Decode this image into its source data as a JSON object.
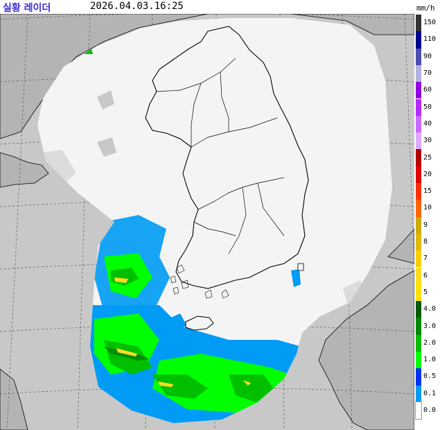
{
  "header": {
    "title": "실황 레이더",
    "timestamp": "2026.04.03.16:25",
    "unit": "mm/h"
  },
  "colors": {
    "land": "#b4b4b4",
    "sea": "#c8c8c8",
    "coverage": "#f4f4f4",
    "border": "#000000",
    "grid": "#5a5a5a"
  },
  "legend": {
    "items": [
      {
        "label": "150",
        "color": "#333333"
      },
      {
        "label": "110",
        "color": "#000390"
      },
      {
        "label": "90",
        "color": "#4c4eb1"
      },
      {
        "label": "70",
        "color": "#b3b4de"
      },
      {
        "label": "60",
        "color": "#9300e4"
      },
      {
        "label": "50",
        "color": "#b329ff"
      },
      {
        "label": "40",
        "color": "#c969ff"
      },
      {
        "label": "30",
        "color": "#e0a9ff"
      },
      {
        "label": "25",
        "color": "#b40000"
      },
      {
        "label": "20",
        "color": "#e00000"
      },
      {
        "label": "15",
        "color": "#ff3300"
      },
      {
        "label": "10",
        "color": "#ff6600"
      },
      {
        "label": "9",
        "color": "#ccaa00"
      },
      {
        "label": "8",
        "color": "#e0b900"
      },
      {
        "label": "7",
        "color": "#f9cd00"
      },
      {
        "label": "6",
        "color": "#ffdc1f"
      },
      {
        "label": "5",
        "color": "#ffe100"
      },
      {
        "label": "4.0",
        "color": "#005a00"
      },
      {
        "label": "3.0",
        "color": "#008c00"
      },
      {
        "label": "2.0",
        "color": "#00be00"
      },
      {
        "label": "1.0",
        "color": "#00ff00"
      },
      {
        "label": "0.5",
        "color": "#0033f5"
      },
      {
        "label": "0.1",
        "color": "#009bf5"
      },
      {
        "label": "0.0",
        "color": "#ffffff"
      }
    ]
  }
}
